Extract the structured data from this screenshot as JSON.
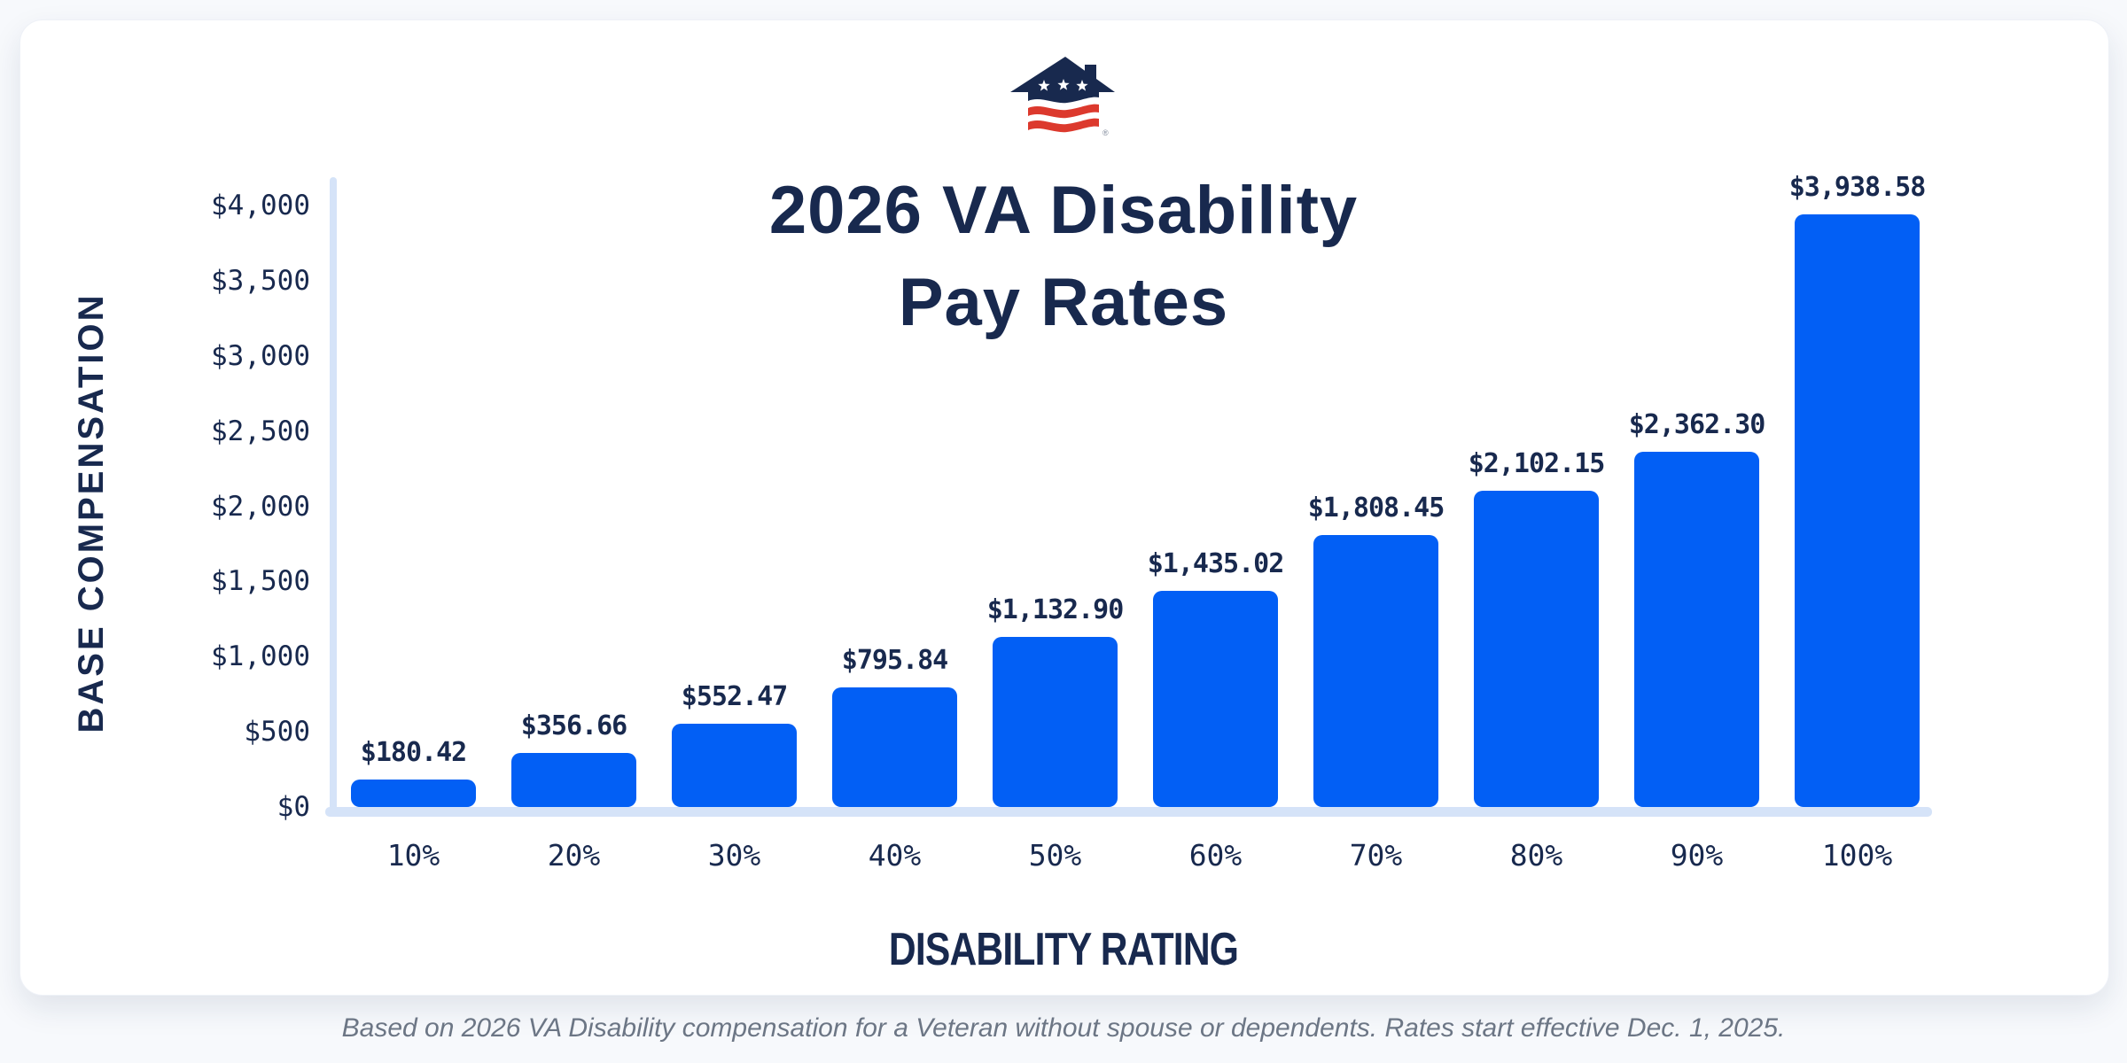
{
  "page": {
    "background_color": "#F7F9FC",
    "card_color": "#FFFFFF"
  },
  "logo": {
    "name": "veterans-united-house-flag-logo",
    "registered_mark": "®",
    "colors": {
      "navy": "#18294E",
      "red": "#DC392D",
      "white": "#FFFFFF"
    }
  },
  "chart_data": {
    "type": "bar",
    "title": "2026 VA Disability Pay Rates",
    "title_lines": [
      "2026 VA Disability",
      "Pay Rates"
    ],
    "xlabel": "DISABILITY RATING",
    "ylabel": "BASE COMPENSATION",
    "categories": [
      "10%",
      "20%",
      "30%",
      "40%",
      "50%",
      "60%",
      "70%",
      "80%",
      "90%",
      "100%"
    ],
    "values": [
      180.42,
      356.66,
      552.47,
      795.84,
      1132.9,
      1435.02,
      1808.45,
      2102.15,
      2362.3,
      3938.58
    ],
    "value_labels": [
      "$180.42",
      "$356.66",
      "$552.47",
      "$795.84",
      "$1,132.90",
      "$1,435.02",
      "$1,808.45",
      "$2,102.15",
      "$2,362.30",
      "$3,938.58"
    ],
    "ylim": [
      0,
      4000
    ],
    "yticks": [
      "$4,000",
      "$3,500",
      "$3,000",
      "$2,500",
      "$2,000",
      "$1,500",
      "$1,000",
      "$500",
      "$0"
    ],
    "grid": false,
    "legend": null,
    "bar_color": "#025FF5",
    "axis_color": "#D5E3F8",
    "label_color": "#18294E"
  },
  "footer": {
    "note": "Based on 2026 VA Disability compensation for a Veteran without spouse or dependents. Rates start effective Dec. 1, 2025."
  }
}
